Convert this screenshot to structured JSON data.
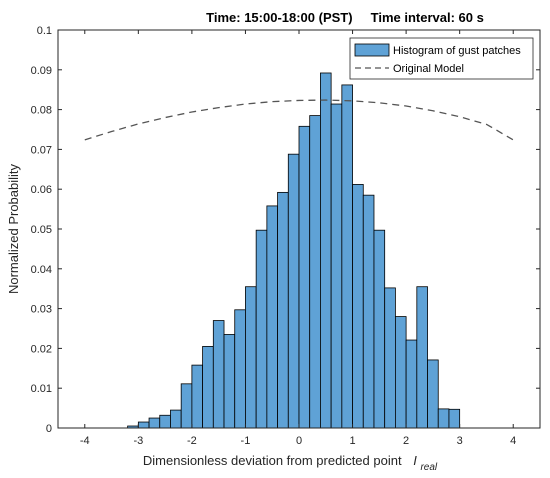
{
  "chart_data": {
    "type": "bar",
    "title": "Time: 15:00-18:00 (PST)     Time interval: 60 s",
    "xlabel": "Dimensionless deviation from predicted point",
    "xlabel_symbol": "I",
    "xlabel_subscript": "real",
    "ylabel": "Normalized Probability",
    "xlim": [
      -4.5,
      4.5
    ],
    "ylim": [
      0,
      0.1
    ],
    "xticks": [
      -4,
      -3,
      -2,
      -1,
      0,
      1,
      2,
      3,
      4
    ],
    "yticks": [
      0,
      0.01,
      0.02,
      0.03,
      0.04,
      0.05,
      0.06,
      0.07,
      0.08,
      0.09,
      0.1
    ],
    "xtick_labels": [
      "-4",
      "-3",
      "-2",
      "-1",
      "0",
      "1",
      "2",
      "3",
      "4"
    ],
    "ytick_labels": [
      "0",
      "0.01",
      "0.02",
      "0.03",
      "0.04",
      "0.05",
      "0.06",
      "0.07",
      "0.08",
      "0.09",
      "0.1"
    ],
    "grid": false,
    "legend_position": "top-right",
    "bar_color": "#5fa2d6",
    "bar_edge_color": "#000000",
    "line_color": "#555555",
    "series": [
      {
        "name": "Histogram of gust patches",
        "kind": "histogram",
        "bin_width": 0.2,
        "bin_centers": [
          -3.1,
          -2.9,
          -2.7,
          -2.5,
          -2.3,
          -2.1,
          -1.9,
          -1.7,
          -1.5,
          -1.3,
          -1.1,
          -0.9,
          -0.7,
          -0.5,
          -0.3,
          -0.1,
          0.1,
          0.3,
          0.5,
          0.7,
          0.9,
          1.1,
          1.3,
          1.5,
          1.7,
          1.9,
          2.1,
          2.3,
          2.5,
          2.7,
          2.9
        ],
        "values": [
          0.0005,
          0.0015,
          0.0025,
          0.0032,
          0.0045,
          0.0111,
          0.0158,
          0.0205,
          0.027,
          0.0235,
          0.0297,
          0.0355,
          0.0497,
          0.0558,
          0.0592,
          0.0688,
          0.0758,
          0.0785,
          0.0892,
          0.0814,
          0.0862,
          0.0612,
          0.0585,
          0.0497,
          0.0352,
          0.028,
          0.0221,
          0.0355,
          0.0171,
          0.0048,
          0.0047
        ]
      },
      {
        "name": "Original Model",
        "kind": "line",
        "style": "dashed",
        "x": [
          -4,
          -3.5,
          -3,
          -2.5,
          -2,
          -1.5,
          -1,
          -0.5,
          0,
          0.5,
          1,
          1.5,
          2,
          2.5,
          3,
          3.5,
          4
        ],
        "y": [
          0.0724,
          0.0745,
          0.0764,
          0.078,
          0.0794,
          0.0805,
          0.0814,
          0.082,
          0.0823,
          0.0824,
          0.0822,
          0.0817,
          0.0809,
          0.0797,
          0.0782,
          0.0763,
          0.0724
        ]
      }
    ]
  }
}
